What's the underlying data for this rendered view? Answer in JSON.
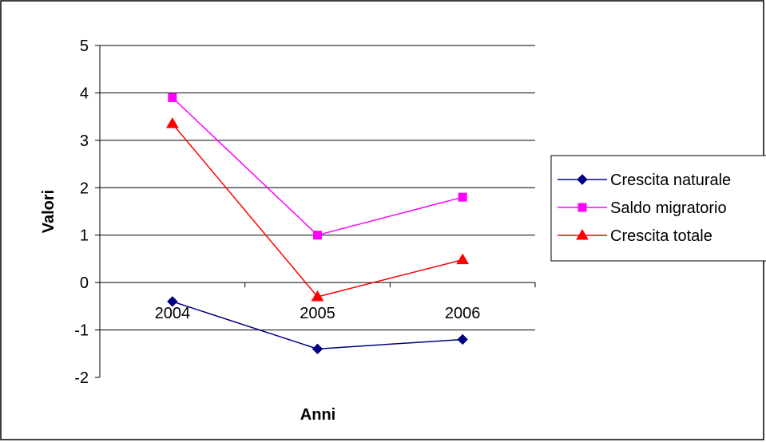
{
  "chart_data": {
    "type": "line",
    "categories": [
      "2004",
      "2005",
      "2006"
    ],
    "series": [
      {
        "name": "Crescita naturale",
        "values": [
          -0.4,
          -1.4,
          -1.2
        ],
        "color": "#000080",
        "marker": "diamond"
      },
      {
        "name": "Saldo migratorio",
        "values": [
          3.9,
          1.0,
          1.8
        ],
        "color": "#FF00FF",
        "marker": "square"
      },
      {
        "name": "Crescita totale",
        "values": [
          3.35,
          -0.3,
          0.48
        ],
        "color": "#FF0000",
        "marker": "triangle"
      }
    ],
    "xlabel": "Anni",
    "ylabel": "Valori",
    "ylim": [
      -2,
      5
    ],
    "yticks": [
      "-2",
      "-1",
      "0",
      "1",
      "2",
      "3",
      "4",
      "5"
    ],
    "grid": true,
    "legend": "right"
  }
}
